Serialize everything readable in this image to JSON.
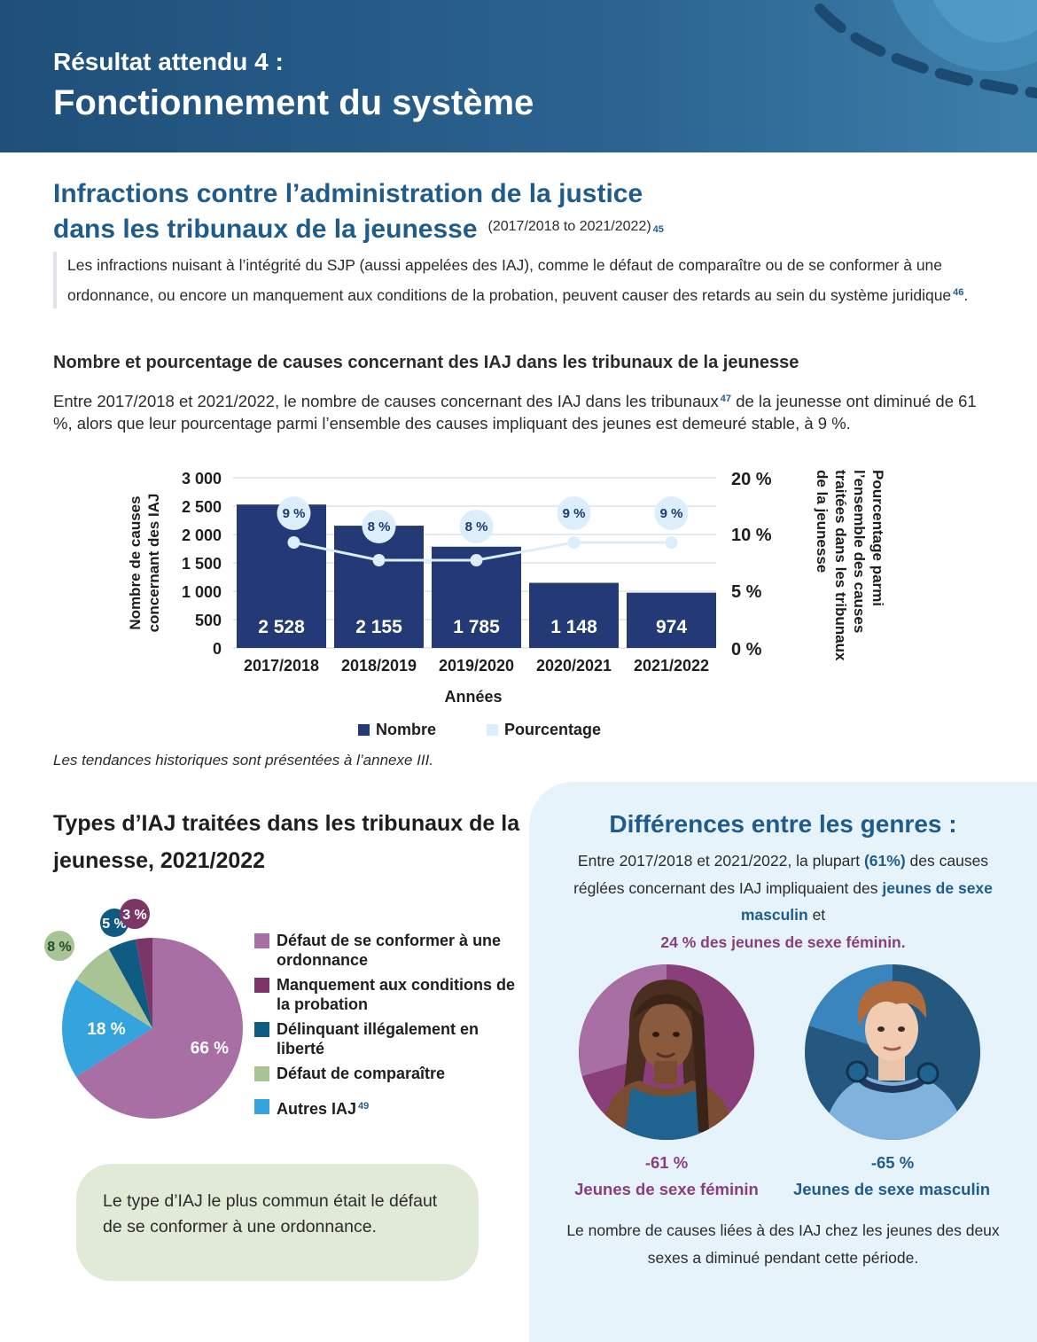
{
  "header": {
    "kicker": "Résultat attendu 4 :",
    "title": "Fonctionnement du système"
  },
  "section": {
    "title_line1": "Infractions contre l’administration de la justice",
    "title_line2": "dans les tribunaux de la jeunesse",
    "period": "(2017/2018 to 2021/2022)",
    "period_ref": "45",
    "quote": "Les infractions nuisant à l’intégrité du SJP (aussi appelées des IAJ), comme le défaut de comparaître ou de se conformer à une ordonnance, ou encore un manquement aux conditions de la probation, peuvent causer des retards au sein du système juridique",
    "quote_ref": "46",
    "quote_end": "."
  },
  "chart_section": {
    "heading": "Nombre et pourcentage de causes concernant des IAJ dans les tribunaux de la jeunesse",
    "intro_a": "Entre 2017/2018 et 2021/2022, le nombre de causes concernant des IAJ dans les tribunaux",
    "intro_ref": "47",
    "intro_b": "de la jeunesse ont diminué de 61 %, alors que leur pourcentage parmi l’ensemble des causes impliquant des jeunes est demeuré stable, à 9 %.",
    "note": "Les tendances historiques sont présentées à l’annexe III."
  },
  "chart_data": [
    {
      "type": "bar",
      "categories": [
        "2017/2018",
        "2018/2019",
        "2019/2020",
        "2020/2021",
        "2021/2022"
      ],
      "series": [
        {
          "name": "Nombre",
          "type": "bar",
          "axis": "left",
          "values": [
            2528,
            2155,
            1785,
            1148,
            974
          ],
          "labels": [
            "2 528",
            "2 155",
            "1 785",
            "1 148",
            "974"
          ],
          "color": "#233a76"
        },
        {
          "name": "Pourcentage",
          "type": "line",
          "axis": "right",
          "values": [
            9,
            8,
            8,
            9,
            9
          ],
          "labels": [
            "9 %",
            "8 %",
            "8 %",
            "9 %",
            "9 %"
          ],
          "color": "#dceefb"
        }
      ],
      "xlabel": "Années",
      "ylabel_left": [
        "Nombre de causes",
        "concernant des IAJ"
      ],
      "ylabel_right": [
        "Pourcentage parmi",
        "l’ensemble des causes",
        "traitées dans les tribunaux",
        "de la jeunesse"
      ],
      "ylim_left": [
        0,
        3000
      ],
      "yticks_left": [
        "0",
        "500",
        "1 000",
        "1 500",
        "2 000",
        "2 500",
        "3 000"
      ],
      "yticks_right": [
        "0 %",
        "5 %",
        "10 %",
        "20 %"
      ],
      "grid": true,
      "legend_position": "bottom"
    },
    {
      "type": "pie",
      "title": "Types d’IAJ traitées dans les tribunaux de la jeunesse, 2021/2022",
      "slices": [
        {
          "label": "Défaut de se conformer à une ordonnance",
          "value": 66,
          "display": "66 %",
          "color": "#a86fa4"
        },
        {
          "label": "Autres IAJ",
          "ref": "49",
          "value": 18,
          "display": "18 %",
          "color": "#35a3dd"
        },
        {
          "label": "Défaut de comparaître",
          "value": 8,
          "display": "8 %",
          "color": "#a8c495"
        },
        {
          "label": "Délinquant illégalement en liberté",
          "value": 5,
          "display": "5 %",
          "color": "#0f5a80"
        },
        {
          "label": "Manquement aux conditions de la probation",
          "value": 3,
          "display": "3 %",
          "color": "#7b3566"
        }
      ]
    }
  ],
  "types": {
    "title": "Types d’IAJ traitées dans les tribunaux de la jeunesse, 2021/2022",
    "legend": [
      {
        "label": "Défaut de se conformer à une ordonnance",
        "color": "#a86fa4"
      },
      {
        "label": "Manquement aux conditions de la probation",
        "color": "#7b3566"
      },
      {
        "label": "Délinquant illégalement en liberté",
        "color": "#0f5a80"
      },
      {
        "label": "Défaut de comparaître",
        "color": "#a8c495"
      },
      {
        "label": "Autres IAJ",
        "color": "#35a3dd",
        "ref": "49"
      }
    ],
    "tip": "Le type d’IAJ le plus commun était le défaut de se conformer à une ordonnance."
  },
  "gender": {
    "title": "Différences entre les genres :",
    "text_a": "Entre 2017/2018 et 2021/2022, la plupart",
    "text_b": "(61%)",
    "text_c": "des causes réglées concernant des IAJ impliquaient des",
    "text_d": "jeunes de sexe masculin",
    "text_e": "et",
    "text_f": "24 % des jeunes de sexe féminin.",
    "female": {
      "pct": "-61 %",
      "label": "Jeunes de sexe féminin",
      "color": "#8a3f7b"
    },
    "male": {
      "pct": "-65 %",
      "label": "Jeunes de sexe masculin",
      "color": "#1f5c8c"
    },
    "foot": "Le nombre de causes liées à des IAJ chez les jeunes des deux sexes a diminué pendant cette période."
  }
}
